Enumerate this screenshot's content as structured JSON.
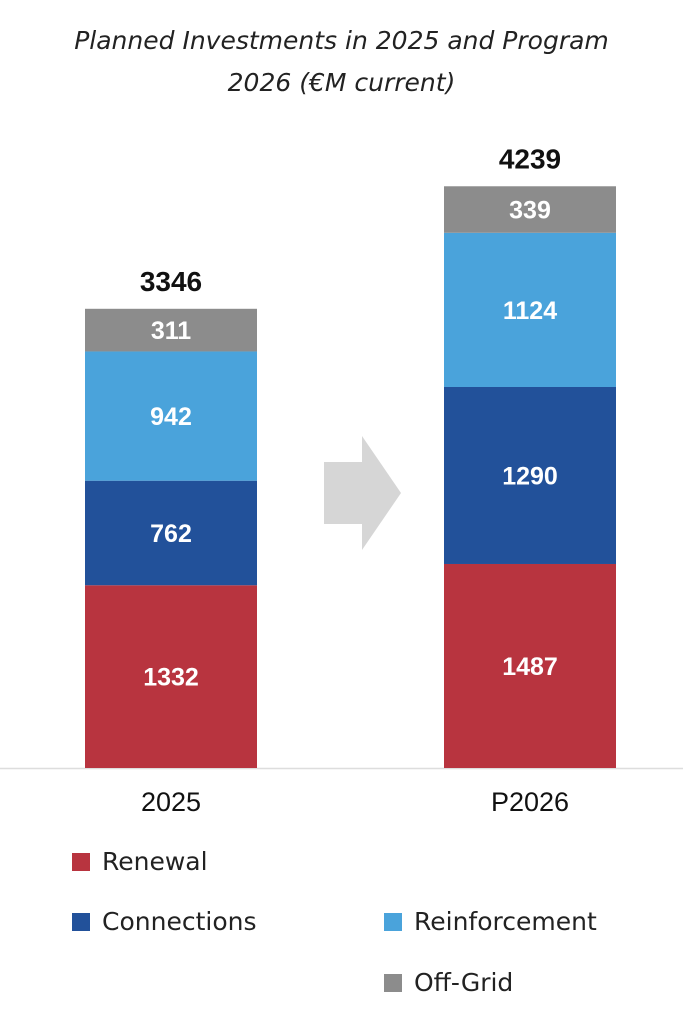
{
  "title_line_1": "Planned Investments in 2025 and Program",
  "title_line_2": "2026 (€M current)",
  "chart_data": {
    "type": "bar",
    "stacked": true,
    "categories": [
      "2025",
      "P2026"
    ],
    "totals": [
      3346,
      4239
    ],
    "series": [
      {
        "name": "Renewal",
        "color": "#b8343f",
        "values": [
          1332,
          1487
        ]
      },
      {
        "name": "Connections",
        "color": "#22519a",
        "values": [
          762,
          1290
        ]
      },
      {
        "name": "Reinforcement",
        "color": "#4aa3db",
        "values": [
          942,
          1124
        ]
      },
      {
        "name": "Off-Grid",
        "color": "#8c8c8c",
        "values": [
          311,
          339
        ]
      }
    ],
    "arrow_icon": "right-arrow-icon",
    "arrow_color": "#d6d6d6",
    "legend_position": "bottom"
  }
}
